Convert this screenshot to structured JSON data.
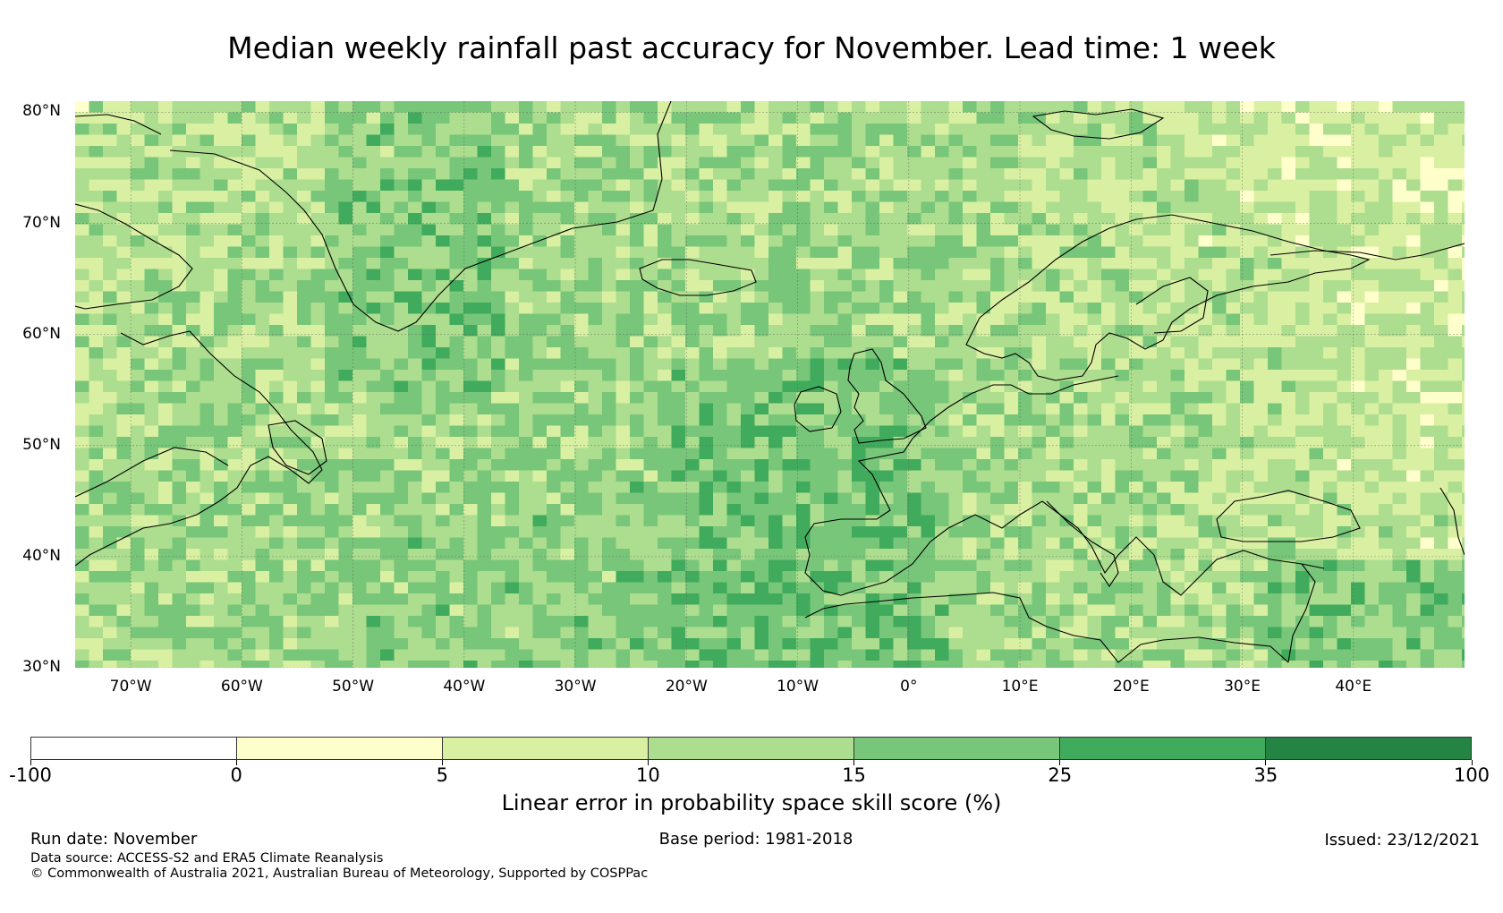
{
  "title": "Median weekly rainfall past accuracy for November. Lead time: 1 week",
  "map": {
    "region": "North Atlantic and Europe",
    "lon_range": [
      -75,
      50
    ],
    "lat_range": [
      30,
      81
    ],
    "lat_labels": [
      "80°N",
      "70°N",
      "60°N",
      "50°N",
      "40°N",
      "30°N"
    ],
    "lat_values": [
      80,
      70,
      60,
      50,
      40,
      30
    ],
    "lon_labels": [
      "70°W",
      "60°W",
      "50°W",
      "40°W",
      "30°W",
      "20°W",
      "10°W",
      "0°",
      "10°E",
      "20°E",
      "30°E",
      "40°E"
    ],
    "lon_values": [
      -70,
      -60,
      -50,
      -40,
      -30,
      -20,
      -10,
      0,
      10,
      20,
      30,
      40
    ]
  },
  "colorbar": {
    "boundaries": [
      "-100",
      "0",
      "5",
      "10",
      "15",
      "25",
      "35",
      "100"
    ],
    "colors": [
      "#ffffff",
      "#ffffcc",
      "#d9f0a3",
      "#addd8e",
      "#78c679",
      "#41ab5d",
      "#238443"
    ],
    "label": "Linear error in probability space skill score (%)"
  },
  "footer": {
    "run_date": "Run date: November",
    "base_period": "Base period: 1981-2018",
    "issued": "Issued: 23/12/2021",
    "data_source": "Data source: ACCESS-S2 and ERA5 Climate Reanalysis",
    "copyright": "© Commonwealth of Australia 2021, Australian Bureau of Meteorology, Supported by COSPPac"
  }
}
